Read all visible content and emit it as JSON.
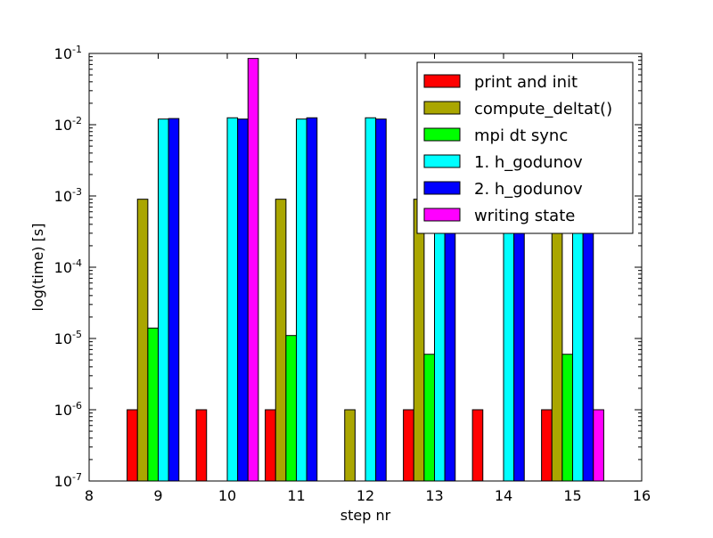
{
  "chart_data": {
    "type": "bar",
    "xlabel": "step nr",
    "ylabel": "log(time) [s]",
    "xlim": [
      8,
      16
    ],
    "ylim": [
      1e-07,
      0.1
    ],
    "yscale": "log",
    "x_ticks": [
      "8",
      "9",
      "10",
      "11",
      "12",
      "13",
      "14",
      "15",
      "16"
    ],
    "y_ticks": [
      {
        "value": 1e-07,
        "base": "10",
        "exp": "-7"
      },
      {
        "value": 1e-06,
        "base": "10",
        "exp": "-6"
      },
      {
        "value": 1e-05,
        "base": "10",
        "exp": "-5"
      },
      {
        "value": 0.0001,
        "base": "10",
        "exp": "-4"
      },
      {
        "value": 0.001,
        "base": "10",
        "exp": "-3"
      },
      {
        "value": 0.01,
        "base": "10",
        "exp": "-2"
      },
      {
        "value": 0.1,
        "base": "10",
        "exp": "-1"
      }
    ],
    "grid": false,
    "legend_position": "top-right",
    "bar_group_width": 0.9,
    "x": [
      9,
      10,
      11,
      12,
      13,
      14,
      15
    ],
    "series": [
      {
        "name": "print and init",
        "color": "#ff0000",
        "values": [
          1e-06,
          1e-06,
          1e-06,
          null,
          1e-06,
          1e-06,
          1e-06
        ]
      },
      {
        "name": "compute_deltat()",
        "color": "#aaa600",
        "values": [
          0.0009,
          null,
          0.0009,
          1e-06,
          0.0009,
          null,
          0.0009
        ]
      },
      {
        "name": "mpi dt sync",
        "color": "#00ff00",
        "values": [
          1.4e-05,
          null,
          1.1e-05,
          null,
          6e-06,
          null,
          6e-06
        ]
      },
      {
        "name": "1. h_godunov",
        "color": "#00ffff",
        "values": [
          0.012,
          0.0125,
          0.012,
          0.0125,
          0.012,
          0.012,
          0.012
        ]
      },
      {
        "name": "2. h_godunov",
        "color": "#0000ff",
        "values": [
          0.0122,
          0.012,
          0.0125,
          0.012,
          0.0122,
          0.0122,
          0.0122
        ]
      },
      {
        "name": "writing state",
        "color": "#ff00ff",
        "values": [
          null,
          0.085,
          null,
          null,
          null,
          null,
          1e-06
        ]
      }
    ]
  }
}
